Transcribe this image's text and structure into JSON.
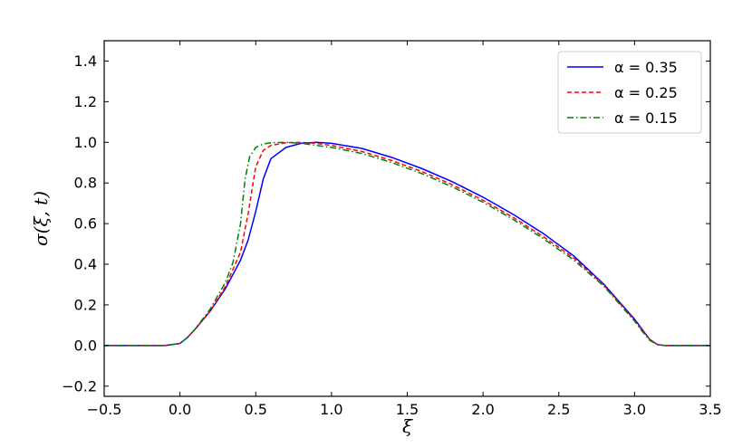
{
  "chart_data": {
    "type": "line",
    "xlabel": "ξ",
    "ylabel": "σ(ξ, t)",
    "xlim": [
      -0.5,
      3.5
    ],
    "ylim": [
      -0.25,
      1.5
    ],
    "xticks": [
      -0.5,
      0.0,
      0.5,
      1.0,
      1.5,
      2.0,
      2.5,
      3.0,
      3.5
    ],
    "yticks": [
      -0.2,
      0.0,
      0.2,
      0.4,
      0.6,
      0.8,
      1.0,
      1.2,
      1.4
    ],
    "xtick_labels": [
      "−0.5",
      "0.0",
      "0.5",
      "1.0",
      "1.5",
      "2.0",
      "2.5",
      "3.0",
      "3.5"
    ],
    "ytick_labels": [
      "−0.2",
      "0.0",
      "0.2",
      "0.4",
      "0.6",
      "0.8",
      "1.0",
      "1.2",
      "1.4"
    ],
    "grid": false,
    "legend_position": "top-right",
    "series": [
      {
        "name": "α = 0.35",
        "color": "#0000ff",
        "style": "solid",
        "x": [
          -0.5,
          -0.1,
          0.0,
          0.05,
          0.1,
          0.2,
          0.3,
          0.4,
          0.45,
          0.5,
          0.55,
          0.6,
          0.7,
          0.8,
          0.9,
          1.0,
          1.2,
          1.4,
          1.6,
          1.8,
          2.0,
          2.2,
          2.4,
          2.6,
          2.8,
          2.9,
          3.0,
          3.05,
          3.1,
          3.15,
          3.2,
          3.5
        ],
        "y": [
          0.0,
          0.0,
          0.01,
          0.04,
          0.08,
          0.17,
          0.28,
          0.42,
          0.52,
          0.66,
          0.82,
          0.92,
          0.975,
          0.995,
          1.0,
          0.995,
          0.97,
          0.925,
          0.87,
          0.805,
          0.73,
          0.645,
          0.55,
          0.44,
          0.3,
          0.215,
          0.13,
          0.08,
          0.03,
          0.005,
          0.0,
          0.0
        ]
      },
      {
        "name": "α = 0.25",
        "color": "#ff0000",
        "style": "dashed",
        "x": [
          -0.5,
          -0.1,
          0.0,
          0.05,
          0.1,
          0.2,
          0.3,
          0.4,
          0.45,
          0.5,
          0.55,
          0.6,
          0.7,
          0.8,
          0.9,
          1.0,
          1.2,
          1.4,
          1.6,
          1.8,
          2.0,
          2.2,
          2.4,
          2.6,
          2.8,
          2.9,
          3.0,
          3.05,
          3.1,
          3.15,
          3.2,
          3.5
        ],
        "y": [
          0.0,
          0.0,
          0.01,
          0.04,
          0.08,
          0.17,
          0.29,
          0.46,
          0.65,
          0.88,
          0.96,
          0.985,
          0.998,
          1.0,
          0.995,
          0.985,
          0.955,
          0.91,
          0.855,
          0.79,
          0.715,
          0.63,
          0.535,
          0.43,
          0.295,
          0.21,
          0.125,
          0.075,
          0.03,
          0.005,
          0.0,
          0.0
        ]
      },
      {
        "name": "α = 0.15",
        "color": "#008000",
        "style": "dashdot",
        "x": [
          -0.5,
          -0.1,
          0.0,
          0.05,
          0.1,
          0.2,
          0.3,
          0.35,
          0.4,
          0.43,
          0.46,
          0.5,
          0.55,
          0.6,
          0.7,
          0.8,
          0.9,
          1.0,
          1.2,
          1.4,
          1.6,
          1.8,
          2.0,
          2.2,
          2.4,
          2.6,
          2.8,
          2.9,
          3.0,
          3.05,
          3.1,
          3.15,
          3.2,
          3.5
        ],
        "y": [
          0.0,
          0.0,
          0.01,
          0.04,
          0.08,
          0.18,
          0.31,
          0.41,
          0.6,
          0.82,
          0.93,
          0.975,
          0.992,
          0.998,
          1.0,
          0.995,
          0.985,
          0.975,
          0.945,
          0.9,
          0.845,
          0.78,
          0.705,
          0.62,
          0.525,
          0.42,
          0.29,
          0.205,
          0.12,
          0.07,
          0.025,
          0.005,
          0.0,
          0.0
        ]
      }
    ]
  }
}
